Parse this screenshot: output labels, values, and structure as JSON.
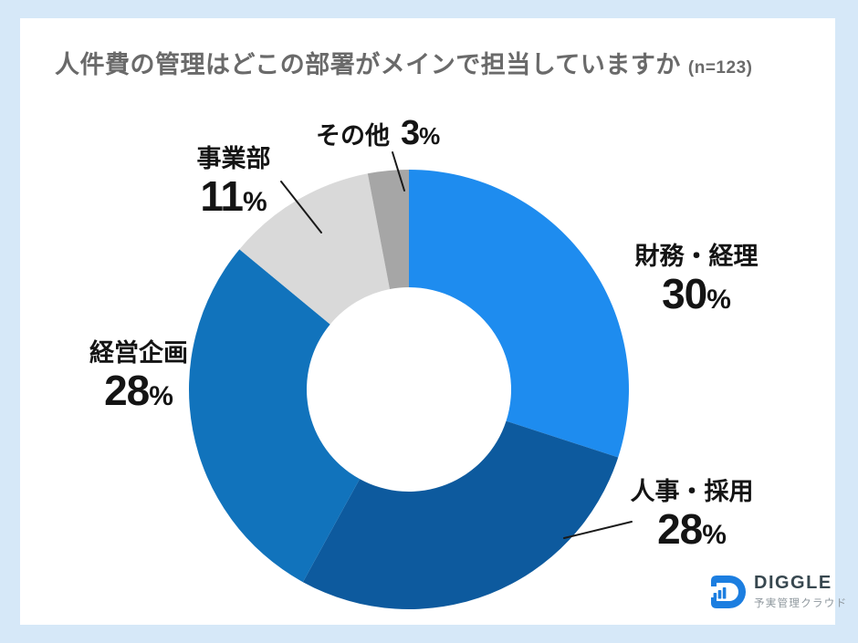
{
  "title": {
    "text": "人件費の管理はどこの部署がメインで担当していますか",
    "sample": "(n=123)"
  },
  "chart_data": {
    "type": "pie",
    "subtype": "donut",
    "title": "人件費の管理はどこの部署がメインで担当していますか",
    "sample_size": "n=123",
    "unit": "%",
    "start_angle_deg": 0,
    "direction": "clockwise",
    "inner_radius_ratio": 0.465,
    "legend": "none (direct labels with leader lines)",
    "segments": [
      {
        "key": "finance",
        "label": "財務・経理",
        "value": 30,
        "pct_label": "30",
        "color": "#1e8cef"
      },
      {
        "key": "hr-recruiting",
        "label": "人事・採用",
        "value": 28,
        "pct_label": "28",
        "color": "#0d5a9e"
      },
      {
        "key": "corporate-planning",
        "label": "経営企画",
        "value": 28,
        "pct_label": "28",
        "color": "#1173bc"
      },
      {
        "key": "business-division",
        "label": "事業部",
        "value": 11,
        "pct_label": "11",
        "color": "#d9d9d9"
      },
      {
        "key": "other",
        "label": "その他",
        "value": 3,
        "pct_label": "3",
        "color": "#a6a6a6"
      }
    ]
  },
  "logo": {
    "brand": "DIGGLE",
    "tagline": "予実管理クラウド",
    "accent": "#1c7ee0"
  }
}
